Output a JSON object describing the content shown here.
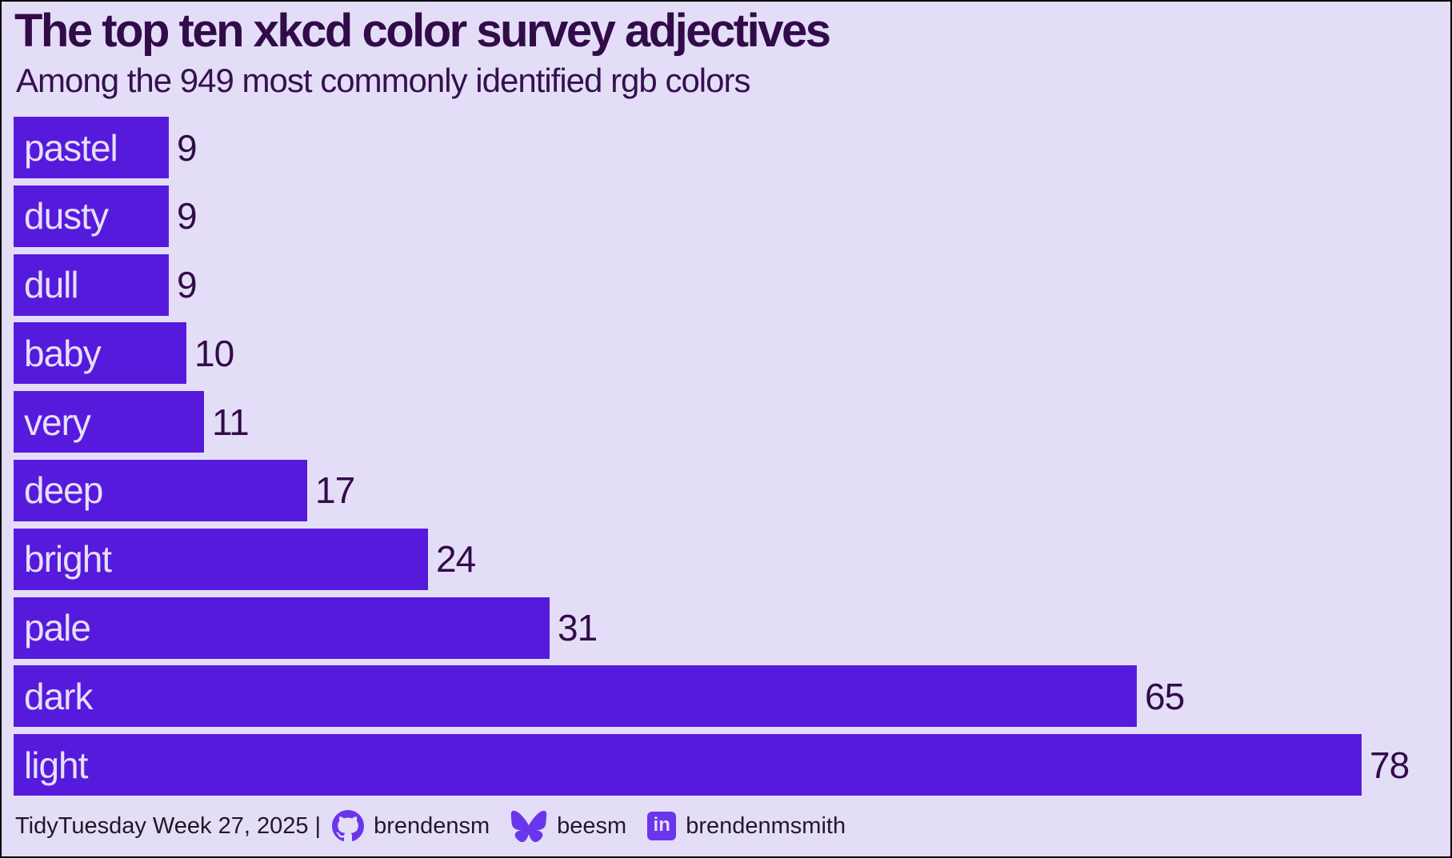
{
  "title": "The top ten xkcd color survey adjectives",
  "subtitle": "Among the 949 most commonly identified rgb colors",
  "chart_data": {
    "type": "bar",
    "orientation": "horizontal",
    "title": "The top ten xkcd color survey adjectives",
    "subtitle": "Among the 949 most commonly identified rgb colors",
    "categories": [
      "pastel",
      "dusty",
      "dull",
      "baby",
      "very",
      "deep",
      "bright",
      "pale",
      "dark",
      "light"
    ],
    "values": [
      9,
      9,
      9,
      10,
      11,
      17,
      24,
      31,
      65,
      78
    ],
    "xlim": [
      0,
      78
    ],
    "grid": false,
    "value_labels": "outside-end",
    "category_labels": "inside-start"
  },
  "footer": {
    "caption": "TidyTuesday Week 27, 2025 |",
    "github_icon": "github-icon",
    "github_user": "brendensm",
    "bluesky_icon": "bluesky-butterfly-icon",
    "bluesky_user": "beesm",
    "linkedin_icon": "linkedin-icon",
    "linkedin_icon_label": "in",
    "linkedin_user": "brendenmsmith"
  },
  "colors": {
    "background": "#e4ddf8",
    "bar_fill": "#561adc",
    "bar_label_text": "#e6dff9",
    "value_text": "#320c48",
    "title_text": "#310c49",
    "subtitle_text": "#35114e",
    "footer_text": "#1f1826",
    "icon_purple": "#6936ec",
    "border": "#000000"
  }
}
